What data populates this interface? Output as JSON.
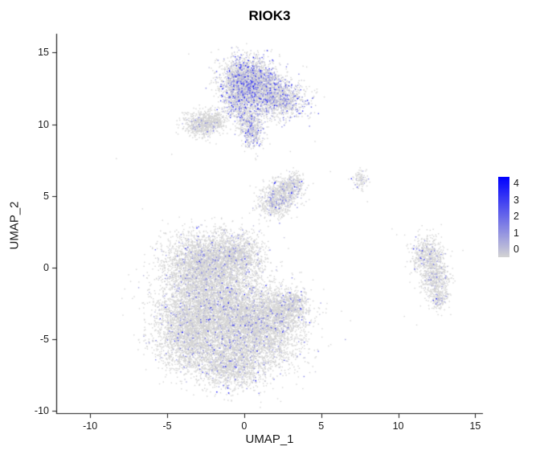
{
  "title": "RIOK3",
  "axes": {
    "x_label": "UMAP_1",
    "y_label": "UMAP_2",
    "x_ticks": [
      -10,
      -5,
      0,
      5,
      10,
      15
    ],
    "y_ticks": [
      -10,
      -5,
      0,
      5,
      10,
      15
    ]
  },
  "legend": {
    "ticks": [
      4,
      3,
      2,
      1,
      0
    ],
    "vmin": 0,
    "vmax": 4,
    "low_color": "#d3d3d3",
    "high_color": "#0000ff"
  },
  "chart_data": {
    "type": "scatter",
    "title": "RIOK3",
    "xlabel": "UMAP_1",
    "ylabel": "UMAP_2",
    "xlim": [
      -12.2,
      15.5
    ],
    "ylim": [
      -10.15,
      16.2
    ],
    "grid": false,
    "legend_position": "right",
    "point_color_low": "#d3d3d3",
    "point_color_high": "#0000ff",
    "value_range": [
      0,
      4
    ],
    "representation": "gaussian-mixture-approximation of ~24000 cells",
    "seed": 42,
    "x_domain": [
      -12.2,
      15.5
    ],
    "y_domain": [
      -10.15,
      16.2
    ],
    "clusters": [
      {
        "name": "top-large-cluster",
        "expr_frac": 0.34,
        "expr_scale": 1.1,
        "lobes": [
          {
            "x": 0.2,
            "y": 13.2,
            "sdx": 0.9,
            "sdy": 0.75,
            "n": 1600
          },
          {
            "x": 1.3,
            "y": 12.2,
            "sdx": 0.95,
            "sdy": 0.75,
            "n": 1200
          },
          {
            "x": 2.6,
            "y": 11.6,
            "sdx": 0.8,
            "sdy": 0.6,
            "n": 600
          },
          {
            "x": -0.4,
            "y": 11.9,
            "sdx": 0.55,
            "sdy": 0.8,
            "n": 550
          },
          {
            "x": 0.4,
            "y": 10.2,
            "sdx": 0.5,
            "sdy": 0.6,
            "n": 380
          },
          {
            "x": 0.5,
            "y": 9.2,
            "sdx": 0.35,
            "sdy": 0.5,
            "n": 200
          }
        ]
      },
      {
        "name": "top-left-blob",
        "expr_frac": 0.07,
        "expr_scale": 0.9,
        "lobes": [
          {
            "x": -2.8,
            "y": 10.0,
            "sdx": 0.6,
            "sdy": 0.45,
            "n": 650
          },
          {
            "x": -1.9,
            "y": 10.3,
            "sdx": 0.35,
            "sdy": 0.35,
            "n": 180
          }
        ]
      },
      {
        "name": "mid-small-cluster",
        "expr_frac": 0.16,
        "expr_scale": 1.0,
        "lobes": [
          {
            "x": 2.0,
            "y": 4.5,
            "sdx": 0.55,
            "sdy": 0.5,
            "n": 500
          },
          {
            "x": 2.7,
            "y": 5.4,
            "sdx": 0.55,
            "sdy": 0.5,
            "n": 450
          },
          {
            "x": 3.3,
            "y": 6.0,
            "sdx": 0.3,
            "sdy": 0.3,
            "n": 130
          }
        ]
      },
      {
        "name": "tiny-right-cluster",
        "expr_frac": 0.12,
        "expr_scale": 0.9,
        "lobes": [
          {
            "x": 7.6,
            "y": 6.1,
            "sdx": 0.25,
            "sdy": 0.35,
            "n": 100
          }
        ]
      },
      {
        "name": "main-large-cluster",
        "expr_frac": 0.1,
        "expr_scale": 0.9,
        "lobes": [
          {
            "x": -2.8,
            "y": 0.3,
            "sdx": 1.2,
            "sdy": 1.1,
            "n": 2200
          },
          {
            "x": -0.6,
            "y": 0.8,
            "sdx": 1.0,
            "sdy": 0.9,
            "n": 1300
          },
          {
            "x": -2.2,
            "y": -2.6,
            "sdx": 1.7,
            "sdy": 1.5,
            "n": 3800
          },
          {
            "x": 0.6,
            "y": -4.3,
            "sdx": 1.6,
            "sdy": 1.5,
            "n": 3800
          },
          {
            "x": -3.6,
            "y": -5.0,
            "sdx": 1.1,
            "sdy": 1.2,
            "n": 1700
          },
          {
            "x": -0.9,
            "y": -6.9,
            "sdx": 1.0,
            "sdy": 0.8,
            "n": 1100
          },
          {
            "x": 2.4,
            "y": -3.0,
            "sdx": 0.8,
            "sdy": 0.7,
            "n": 800
          },
          {
            "x": 3.3,
            "y": -2.4,
            "sdx": 0.35,
            "sdy": 0.4,
            "n": 200
          }
        ]
      },
      {
        "name": "right-elongated-cluster",
        "expr_frac": 0.12,
        "expr_scale": 0.9,
        "lobes": [
          {
            "x": 11.9,
            "y": 0.8,
            "sdx": 0.5,
            "sdy": 0.7,
            "n": 550
          },
          {
            "x": 12.4,
            "y": -0.8,
            "sdx": 0.45,
            "sdy": 0.7,
            "n": 480
          },
          {
            "x": 12.7,
            "y": -2.2,
            "sdx": 0.3,
            "sdy": 0.4,
            "n": 160
          }
        ]
      }
    ],
    "outliers": [
      [
        -8.3,
        7.6
      ],
      [
        -6.6,
        4.1
      ],
      [
        -4.7,
        7.9
      ],
      [
        -3.6,
        14.9
      ],
      [
        -0.5,
        15.4
      ],
      [
        1.8,
        15.2
      ],
      [
        4.6,
        8.8
      ],
      [
        5.6,
        6.7
      ],
      [
        5.2,
        11.9
      ],
      [
        4.2,
        10.4
      ],
      [
        3.0,
        8.1
      ],
      [
        -5.3,
        3.3
      ],
      [
        8.0,
        4.6
      ],
      [
        9.6,
        2.7
      ],
      [
        9.9,
        2.3
      ],
      [
        6.9,
        -3.7
      ],
      [
        10.4,
        -3.4
      ],
      [
        14.2,
        1.2
      ],
      [
        -7.5,
        -0.5
      ],
      [
        12.8,
        3.0
      ],
      [
        11.2,
        -4.0
      ]
    ]
  }
}
